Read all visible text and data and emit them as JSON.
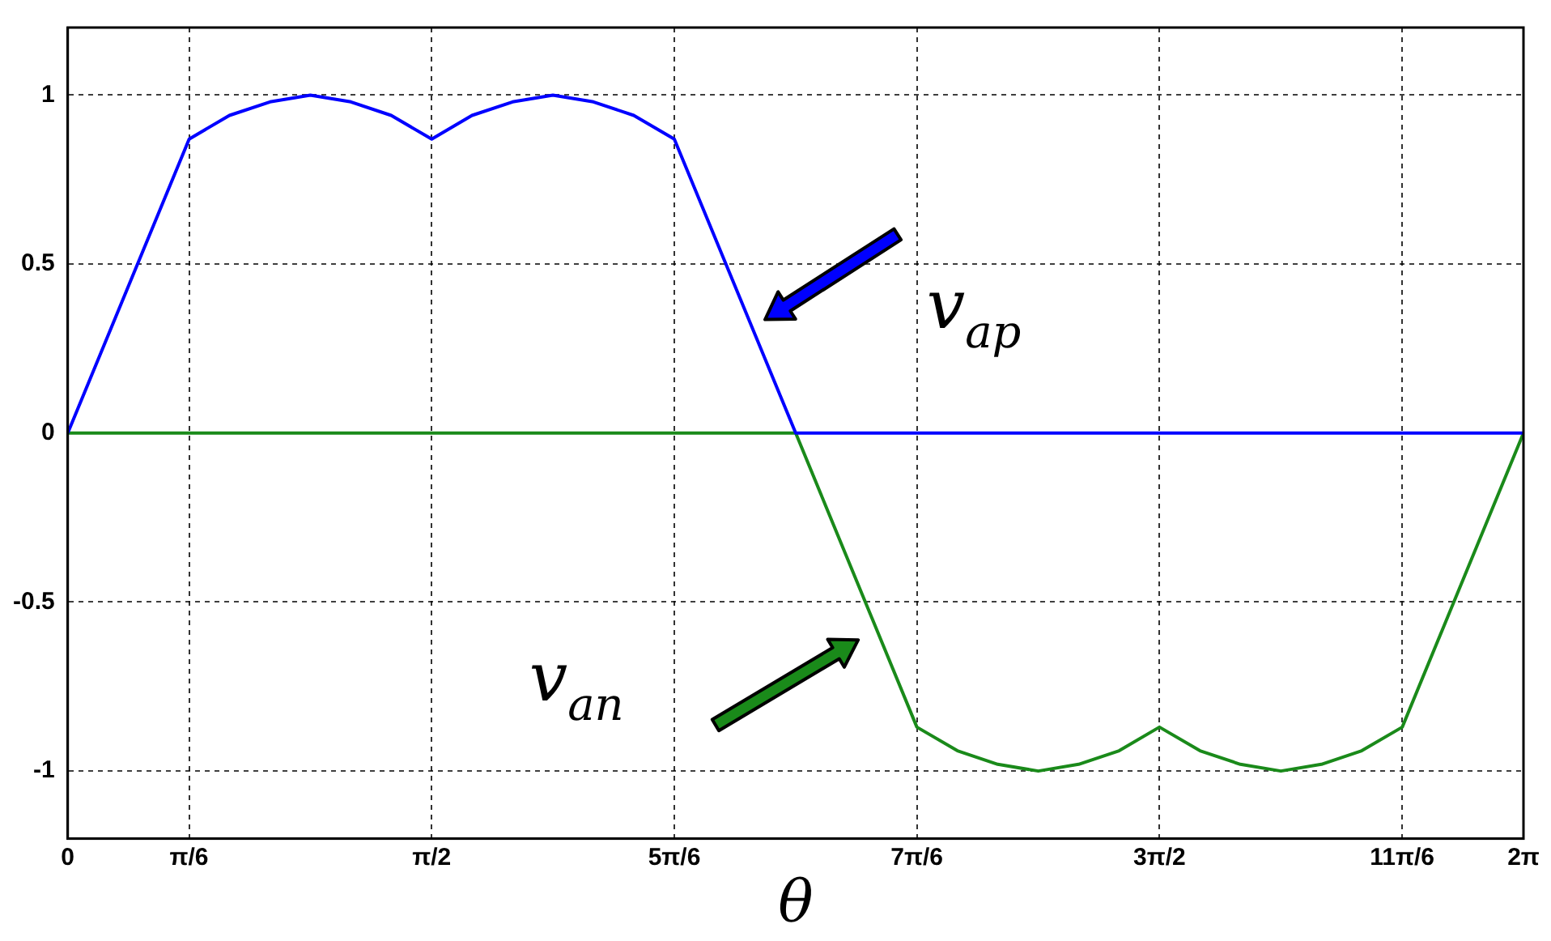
{
  "chart_data": {
    "type": "line",
    "xlabel": "θ",
    "xlim": [
      0,
      6.2832
    ],
    "xticks": [
      0,
      {
        "value": 0.5236,
        "label": "π/6"
      },
      {
        "value": 1.5708,
        "label": "π/2"
      },
      {
        "value": 2.618,
        "label": "5π/6"
      },
      {
        "value": 3.6652,
        "label": "7π/6"
      },
      {
        "value": 4.7124,
        "label": "3π/2"
      },
      {
        "value": 5.7596,
        "label": "11π/6"
      },
      {
        "value": 6.2832,
        "label": "2π"
      }
    ],
    "ylim": [
      -1.2,
      1.2
    ],
    "yticks": [
      -1,
      -0.5,
      0,
      0.5,
      1
    ],
    "grid": true,
    "marker": "none",
    "line_style": "solid",
    "legend": false,
    "series": [
      {
        "color": "#0000ff",
        "x": [
          0,
          0.524,
          0.698,
          0.873,
          1.047,
          1.222,
          1.396,
          1.571,
          1.745,
          1.92,
          2.094,
          2.269,
          2.443,
          2.618,
          3.142,
          6.2832
        ],
        "values": [
          0,
          0.87,
          0.94,
          0.98,
          1,
          0.98,
          0.94,
          0.87,
          0.94,
          0.98,
          1,
          0.98,
          0.94,
          0.87,
          0,
          0
        ]
      },
      {
        "color": "#1a8a1a",
        "x": [
          0,
          3.142,
          3.665,
          3.84,
          4.014,
          4.189,
          4.363,
          4.538,
          4.712,
          4.887,
          5.061,
          5.236,
          5.411,
          5.585,
          5.76,
          6.2832
        ],
        "values": [
          0,
          0,
          -0.87,
          -0.94,
          -0.98,
          -1,
          -0.98,
          -0.94,
          -0.87,
          -0.94,
          -0.98,
          -1,
          -0.98,
          -0.94,
          -0.87,
          0
        ]
      }
    ],
    "annotations": [
      "v$_{ap}$",
      "v$_{an}$"
    ]
  }
}
